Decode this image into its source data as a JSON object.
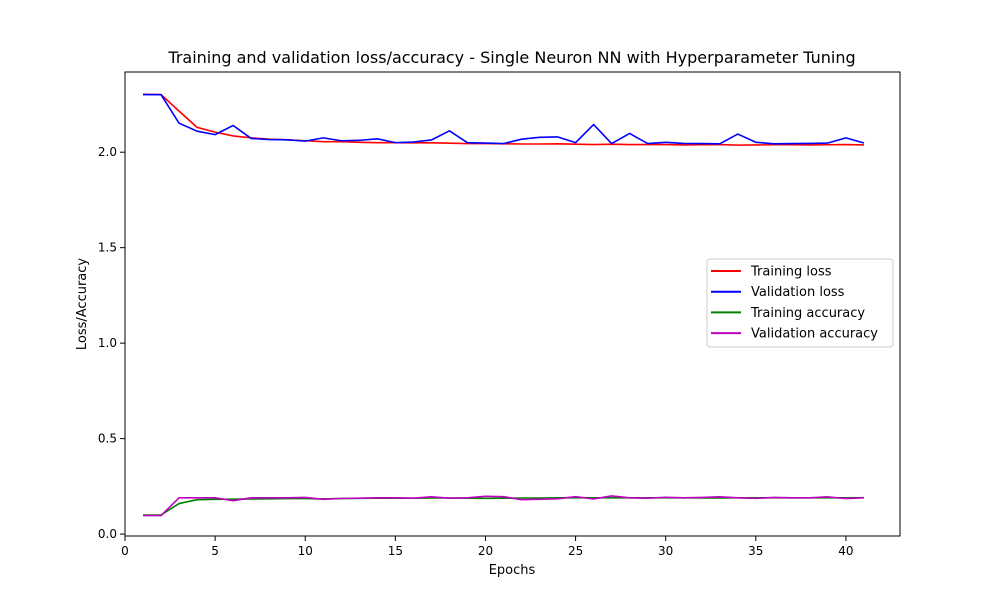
{
  "chart_data": {
    "type": "line",
    "title": "Training and validation loss/accuracy - Single Neuron NN with Hyperparameter Tuning",
    "xlabel": "Epochs",
    "ylabel": "Loss/Accuracy",
    "xlim": [
      0,
      43
    ],
    "ylim": [
      -0.01,
      2.42
    ],
    "xticks": [
      0,
      5,
      10,
      15,
      20,
      25,
      30,
      35,
      40
    ],
    "yticks": [
      0.0,
      0.5,
      1.0,
      1.5,
      2.0
    ],
    "xtick_labels": [
      "0",
      "5",
      "10",
      "15",
      "20",
      "25",
      "30",
      "35",
      "40"
    ],
    "ytick_labels": [
      "0.0",
      "0.5",
      "1.0",
      "1.5",
      "2.0"
    ],
    "legend_position": "center-right",
    "grid": false,
    "x": [
      1,
      2,
      3,
      4,
      5,
      6,
      7,
      8,
      9,
      10,
      11,
      12,
      13,
      14,
      15,
      16,
      17,
      18,
      19,
      20,
      21,
      22,
      23,
      24,
      25,
      26,
      27,
      28,
      29,
      30,
      31,
      32,
      33,
      34,
      35,
      36,
      37,
      38,
      39,
      40,
      41
    ],
    "series": [
      {
        "name": "Training loss",
        "color": "#ff0000",
        "values": [
          2.303,
          2.302,
          2.215,
          2.13,
          2.105,
          2.085,
          2.075,
          2.068,
          2.065,
          2.06,
          2.055,
          2.055,
          2.052,
          2.05,
          2.05,
          2.049,
          2.049,
          2.047,
          2.045,
          2.045,
          2.044,
          2.043,
          2.043,
          2.044,
          2.042,
          2.04,
          2.042,
          2.04,
          2.04,
          2.04,
          2.038,
          2.039,
          2.04,
          2.037,
          2.038,
          2.039,
          2.039,
          2.038,
          2.039,
          2.04,
          2.038
        ]
      },
      {
        "name": "Validation loss",
        "color": "#0000ff",
        "values": [
          2.302,
          2.301,
          2.152,
          2.11,
          2.092,
          2.14,
          2.072,
          2.066,
          2.065,
          2.058,
          2.075,
          2.06,
          2.062,
          2.07,
          2.05,
          2.053,
          2.064,
          2.112,
          2.05,
          2.048,
          2.045,
          2.068,
          2.078,
          2.08,
          2.05,
          2.145,
          2.045,
          2.098,
          2.045,
          2.052,
          2.046,
          2.045,
          2.044,
          2.095,
          2.052,
          2.044,
          2.045,
          2.046,
          2.048,
          2.075,
          2.048
        ]
      },
      {
        "name": "Training accuracy",
        "color": "#008000",
        "values": [
          0.1,
          0.1,
          0.16,
          0.18,
          0.182,
          0.183,
          0.184,
          0.185,
          0.186,
          0.186,
          0.184,
          0.186,
          0.187,
          0.188,
          0.188,
          0.188,
          0.189,
          0.189,
          0.188,
          0.187,
          0.188,
          0.189,
          0.189,
          0.19,
          0.19,
          0.19,
          0.19,
          0.19,
          0.19,
          0.19,
          0.19,
          0.189,
          0.189,
          0.19,
          0.19,
          0.19,
          0.19,
          0.19,
          0.19,
          0.19,
          0.191
        ]
      },
      {
        "name": "Validation accuracy",
        "color": "#bf00bf",
        "values": [
          0.097,
          0.097,
          0.19,
          0.19,
          0.19,
          0.175,
          0.19,
          0.19,
          0.19,
          0.192,
          0.182,
          0.187,
          0.188,
          0.19,
          0.19,
          0.188,
          0.195,
          0.188,
          0.19,
          0.198,
          0.196,
          0.18,
          0.183,
          0.185,
          0.196,
          0.184,
          0.2,
          0.19,
          0.188,
          0.193,
          0.19,
          0.192,
          0.195,
          0.19,
          0.187,
          0.192,
          0.19,
          0.19,
          0.195,
          0.186,
          0.19
        ]
      }
    ]
  }
}
